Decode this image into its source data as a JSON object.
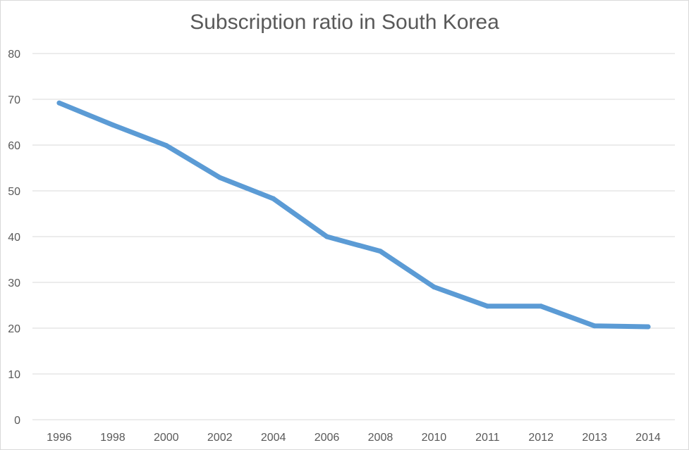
{
  "chart_data": {
    "type": "line",
    "title": "Subscription ratio in South Korea",
    "xlabel": "",
    "ylabel": "",
    "categories": [
      "1996",
      "1998",
      "2000",
      "2002",
      "2004",
      "2006",
      "2008",
      "2010",
      "2011",
      "2012",
      "2013",
      "2014"
    ],
    "series": [
      {
        "values": [
          69.2,
          64.4,
          59.9,
          52.9,
          48.3,
          40.0,
          36.8,
          29.0,
          24.8,
          24.8,
          20.5,
          20.3
        ]
      }
    ],
    "ylim": [
      0,
      80
    ],
    "yticks": [
      0,
      10,
      20,
      30,
      40,
      50,
      60,
      70,
      80
    ],
    "grid": true,
    "legend": "none",
    "colors": {
      "line": "#5b9bd5",
      "grid": "#d9d9d9",
      "text": "#595959"
    }
  }
}
